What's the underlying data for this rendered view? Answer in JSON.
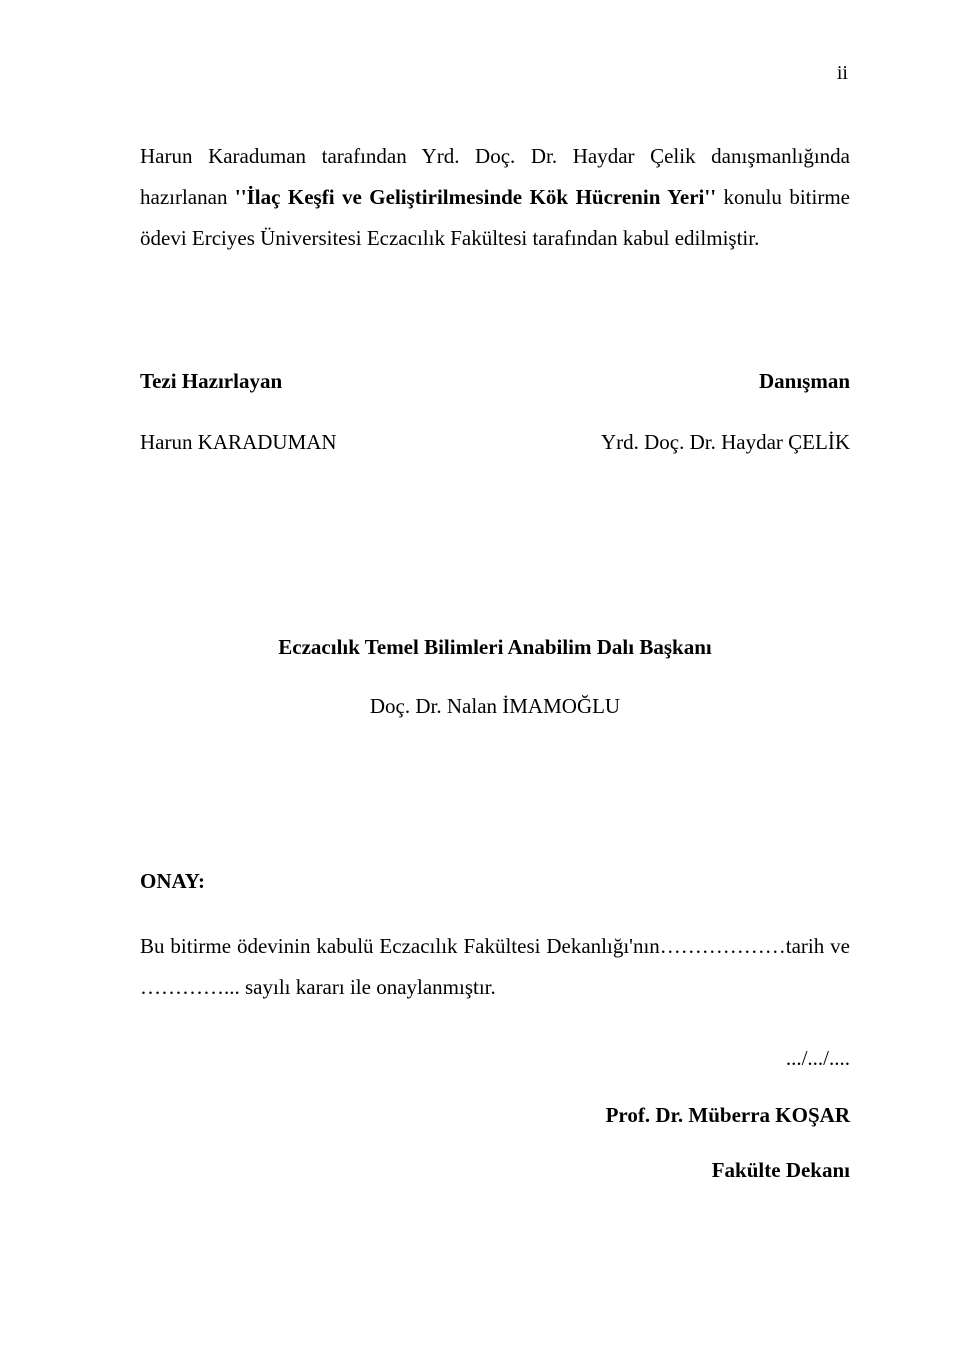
{
  "page_number": "ii",
  "intro_prefix": "Harun Karaduman tarafından Yrd. Doç. Dr. Haydar Çelik danışmanlığında hazırlanan ",
  "intro_title": "''İlaç Keşfi ve Geliştirilmesinde Kök Hücrenin Yeri''",
  "intro_suffix": " konulu bitirme ödevi Erciyes Üniversitesi Eczacılık Fakültesi tarafından kabul edilmiştir.",
  "credits": {
    "preparer_label": "Tezi Hazırlayan",
    "advisor_label": "Danışman",
    "preparer_name": "Harun KARADUMAN",
    "advisor_name": "Yrd. Doç. Dr. Haydar   ÇELİK"
  },
  "department_head_label": "Eczacılık Temel Bilimleri Anabilim Dalı Başkanı",
  "department_head_name": "Doç. Dr. Nalan İMAMOĞLU",
  "onay_label": "ONAY:",
  "onay_text": "Bu bitirme ödevinin kabulü Eczacılık Fakültesi Dekanlığı'nın………………tarih ve …………... sayılı kararı ile onaylanmıştır.",
  "date_slashes": ".../.../....",
  "dean_name": "Prof. Dr. Müberra KOŞAR",
  "dean_title": "Fakülte Dekanı"
}
